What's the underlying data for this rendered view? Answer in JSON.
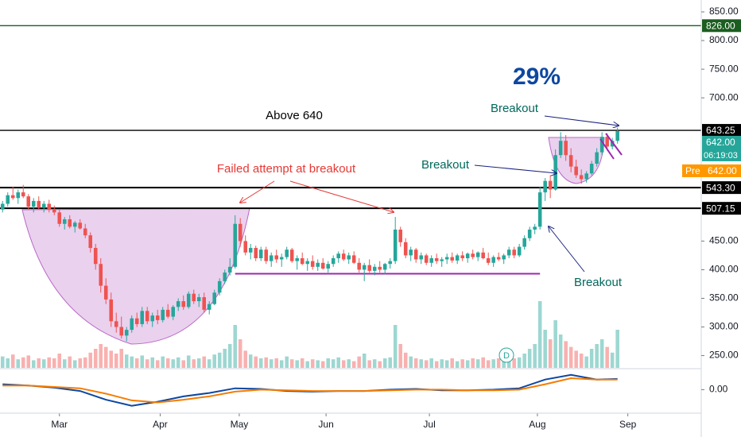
{
  "chart_data": {
    "type": "candlestick",
    "xlim": [
      -0.5,
      134.9
    ],
    "xticks": [
      {
        "value": 11,
        "label": "Mar"
      },
      {
        "value": 30.5,
        "label": "Apr"
      },
      {
        "value": 45.8,
        "label": "May"
      },
      {
        "value": 62.6,
        "label": "Jun"
      },
      {
        "value": 82.6,
        "label": "Jul"
      },
      {
        "value": 103.5,
        "label": "Aug"
      },
      {
        "value": 121,
        "label": "Sep"
      }
    ],
    "ylim": [
      228.6,
      870.8
    ],
    "yticks": [
      {
        "value": 250,
        "label": "250.00"
      },
      {
        "value": 300,
        "label": "300.00"
      },
      {
        "value": 350,
        "label": "350.00"
      },
      {
        "value": 400,
        "label": "400.00"
      },
      {
        "value": 450,
        "label": "450.00"
      },
      {
        "value": 700,
        "label": "700.00"
      },
      {
        "value": 750,
        "label": "750.00"
      },
      {
        "value": 800,
        "label": "800.00"
      },
      {
        "value": 850,
        "label": "850.00"
      }
    ],
    "up_color": "#26a69a",
    "down_color": "#ef5350",
    "candles": [
      [
        505,
        520,
        500,
        515
      ],
      [
        515,
        535,
        510,
        530
      ],
      [
        530,
        545,
        522,
        525
      ],
      [
        525,
        540,
        515,
        535
      ],
      [
        535,
        548,
        525,
        528
      ],
      [
        528,
        532,
        505,
        510
      ],
      [
        510,
        525,
        500,
        520
      ],
      [
        520,
        528,
        505,
        508
      ],
      [
        508,
        520,
        500,
        515
      ],
      [
        515,
        522,
        500,
        505
      ],
      [
        505,
        512,
        495,
        500
      ],
      [
        500,
        505,
        475,
        480
      ],
      [
        480,
        492,
        470,
        488
      ],
      [
        488,
        495,
        472,
        475
      ],
      [
        475,
        485,
        465,
        482
      ],
      [
        482,
        488,
        470,
        472
      ],
      [
        472,
        480,
        455,
        460
      ],
      [
        460,
        465,
        430,
        438
      ],
      [
        438,
        445,
        400,
        410
      ],
      [
        410,
        420,
        360,
        372
      ],
      [
        372,
        385,
        340,
        348
      ],
      [
        348,
        360,
        300,
        310
      ],
      [
        310,
        325,
        290,
        300
      ],
      [
        300,
        318,
        280,
        285
      ],
      [
        285,
        300,
        275,
        295
      ],
      [
        295,
        320,
        290,
        315
      ],
      [
        315,
        325,
        300,
        305
      ],
      [
        305,
        335,
        300,
        328
      ],
      [
        328,
        335,
        305,
        310
      ],
      [
        310,
        325,
        300,
        320
      ],
      [
        320,
        330,
        305,
        312
      ],
      [
        312,
        335,
        308,
        330
      ],
      [
        330,
        340,
        315,
        318
      ],
      [
        318,
        338,
        312,
        335
      ],
      [
        335,
        350,
        328,
        345
      ],
      [
        345,
        355,
        330,
        335
      ],
      [
        335,
        362,
        332,
        358
      ],
      [
        358,
        365,
        340,
        345
      ],
      [
        345,
        358,
        335,
        352
      ],
      [
        352,
        360,
        325,
        330
      ],
      [
        330,
        345,
        322,
        340
      ],
      [
        340,
        365,
        338,
        360
      ],
      [
        360,
        385,
        355,
        380
      ],
      [
        380,
        400,
        375,
        395
      ],
      [
        395,
        420,
        390,
        405
      ],
      [
        405,
        495,
        402,
        480
      ],
      [
        480,
        490,
        440,
        450
      ],
      [
        450,
        460,
        425,
        430
      ],
      [
        430,
        445,
        418,
        438
      ],
      [
        438,
        442,
        415,
        420
      ],
      [
        420,
        440,
        415,
        435
      ],
      [
        435,
        440,
        410,
        415
      ],
      [
        415,
        430,
        405,
        425
      ],
      [
        425,
        435,
        412,
        418
      ],
      [
        418,
        428,
        405,
        422
      ],
      [
        422,
        440,
        418,
        435
      ],
      [
        435,
        438,
        412,
        415
      ],
      [
        415,
        425,
        400,
        420
      ],
      [
        420,
        430,
        408,
        410
      ],
      [
        410,
        420,
        398,
        415
      ],
      [
        415,
        425,
        400,
        405
      ],
      [
        405,
        418,
        398,
        412
      ],
      [
        412,
        420,
        400,
        402
      ],
      [
        402,
        415,
        395,
        410
      ],
      [
        410,
        425,
        405,
        420
      ],
      [
        420,
        432,
        412,
        428
      ],
      [
        428,
        435,
        415,
        418
      ],
      [
        418,
        430,
        410,
        425
      ],
      [
        425,
        432,
        410,
        412
      ],
      [
        412,
        420,
        395,
        400
      ],
      [
        400,
        412,
        380,
        408
      ],
      [
        408,
        418,
        395,
        398
      ],
      [
        398,
        410,
        390,
        405
      ],
      [
        405,
        415,
        395,
        400
      ],
      [
        400,
        412,
        392,
        410
      ],
      [
        410,
        420,
        402,
        415
      ],
      [
        415,
        492,
        410,
        470
      ],
      [
        470,
        475,
        440,
        448
      ],
      [
        448,
        455,
        420,
        425
      ],
      [
        425,
        440,
        415,
        435
      ],
      [
        435,
        438,
        412,
        418
      ],
      [
        418,
        430,
        410,
        425
      ],
      [
        425,
        428,
        408,
        412
      ],
      [
        412,
        425,
        405,
        420
      ],
      [
        420,
        428,
        410,
        415
      ],
      [
        415,
        422,
        405,
        418
      ],
      [
        418,
        428,
        410,
        422
      ],
      [
        422,
        430,
        412,
        416
      ],
      [
        416,
        428,
        410,
        425
      ],
      [
        425,
        432,
        415,
        420
      ],
      [
        420,
        430,
        412,
        428
      ],
      [
        428,
        435,
        418,
        422
      ],
      [
        422,
        432,
        415,
        430
      ],
      [
        430,
        438,
        418,
        420
      ],
      [
        420,
        430,
        408,
        412
      ],
      [
        412,
        425,
        405,
        422
      ],
      [
        422,
        430,
        415,
        418
      ],
      [
        418,
        428,
        410,
        425
      ],
      [
        425,
        440,
        420,
        435
      ],
      [
        435,
        440,
        420,
        425
      ],
      [
        425,
        445,
        422,
        440
      ],
      [
        440,
        460,
        435,
        455
      ],
      [
        455,
        475,
        450,
        470
      ],
      [
        470,
        480,
        462,
        475
      ],
      [
        475,
        545,
        470,
        535
      ],
      [
        535,
        560,
        520,
        555
      ],
      [
        555,
        565,
        525,
        540
      ],
      [
        540,
        610,
        538,
        600
      ],
      [
        600,
        640,
        595,
        625
      ],
      [
        625,
        635,
        590,
        600
      ],
      [
        600,
        612,
        570,
        580
      ],
      [
        580,
        592,
        560,
        565
      ],
      [
        565,
        575,
        550,
        558
      ],
      [
        558,
        572,
        552,
        568
      ],
      [
        568,
        590,
        565,
        585
      ],
      [
        585,
        612,
        580,
        605
      ],
      [
        605,
        640,
        600,
        632
      ],
      [
        632,
        638,
        608,
        615
      ],
      [
        615,
        630,
        610,
        625
      ],
      [
        625,
        648,
        620,
        642
      ]
    ],
    "volume_lim": [
      0,
      100
    ],
    "volume": [
      12,
      10,
      14,
      9,
      11,
      13,
      8,
      10,
      9,
      11,
      10,
      15,
      9,
      12,
      8,
      10,
      11,
      16,
      20,
      25,
      22,
      18,
      15,
      20,
      14,
      12,
      10,
      13,
      9,
      11,
      8,
      12,
      10,
      9,
      11,
      8,
      13,
      9,
      10,
      12,
      9,
      14,
      16,
      20,
      25,
      45,
      30,
      18,
      14,
      12,
      10,
      11,
      9,
      10,
      8,
      12,
      9,
      8,
      10,
      7,
      9,
      8,
      7,
      10,
      9,
      11,
      8,
      9,
      7,
      12,
      15,
      8,
      9,
      7,
      10,
      11,
      45,
      25,
      16,
      12,
      10,
      9,
      8,
      10,
      7,
      9,
      8,
      10,
      7,
      9,
      8,
      10,
      9,
      11,
      8,
      9,
      10,
      8,
      12,
      10,
      11,
      15,
      20,
      25,
      70,
      40,
      30,
      50,
      35,
      28,
      22,
      18,
      15,
      12,
      20,
      25,
      30,
      22,
      16,
      40
    ],
    "indicator": {
      "ylim": [
        -35,
        30
      ],
      "yticks": [
        {
          "value": 0,
          "label": "0.00"
        }
      ],
      "series": [
        {
          "color": "#0d47a1",
          "x": [
            0,
            5,
            10,
            15,
            20,
            25,
            30,
            35,
            40,
            45,
            50,
            55,
            60,
            65,
            70,
            75,
            80,
            85,
            90,
            95,
            100,
            105,
            110,
            115,
            119
          ],
          "values": [
            8,
            6,
            3,
            -2,
            -15,
            -24,
            -18,
            -10,
            -5,
            2,
            1,
            -2,
            -3,
            -2,
            -2,
            0,
            1,
            -1,
            -1,
            0,
            2,
            15,
            22,
            15,
            16
          ]
        },
        {
          "color": "#f57c00",
          "x": [
            0,
            5,
            10,
            15,
            20,
            25,
            30,
            35,
            40,
            45,
            50,
            55,
            60,
            65,
            70,
            75,
            80,
            85,
            90,
            95,
            100,
            105,
            110,
            115,
            119
          ],
          "values": [
            6,
            6,
            4,
            2,
            -6,
            -16,
            -19,
            -15,
            -10,
            -3,
            0,
            -1,
            -2,
            -2,
            -2,
            -1,
            0,
            0,
            -1,
            -1,
            0,
            8,
            17,
            15,
            15
          ]
        }
      ]
    },
    "levels": [
      {
        "value": 826,
        "label": "826.00",
        "color": "#1b5e20"
      },
      {
        "value": 643.25,
        "label": "643.25",
        "color": "#000000"
      },
      {
        "value": 543.3,
        "label": "543.30",
        "color": "#000000"
      },
      {
        "value": 507.15,
        "label": "507.15",
        "color": "#000000"
      }
    ],
    "last_price": {
      "value": 642,
      "label": "642.00",
      "countdown": "06:19:03",
      "color": "#26a69a"
    },
    "pre_market": {
      "name": "Pre",
      "label": "642.00",
      "color": "#ff9800"
    },
    "support": {
      "value": 393,
      "from": 45,
      "to": 104,
      "color": "#9c27b0"
    },
    "annotations": {
      "pct": "29%",
      "breakout_top": "Breakout",
      "above": "Above 640",
      "failed": "Failed attempt at breakout",
      "breakout_mid": "Breakout",
      "breakout_low": "Breakout"
    },
    "event_icon": "D"
  }
}
